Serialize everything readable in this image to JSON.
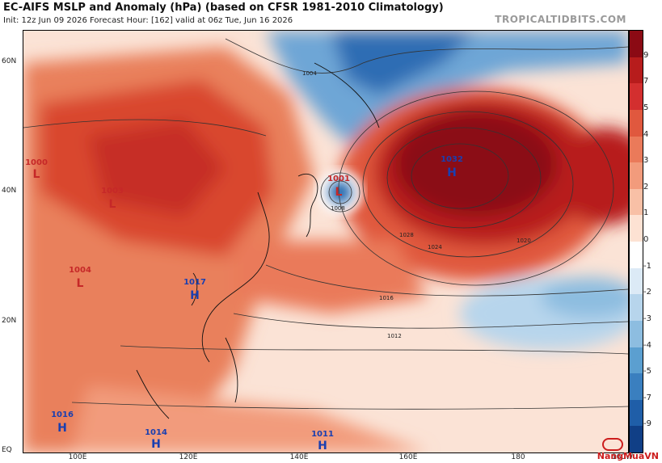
{
  "header": {
    "title": "EC-AIFS MSLP and Anomaly (hPa) (based on CFSR 1981-2010 Climatology)",
    "subtitle": "Init: 12z Jun 09 2026   Forecast Hour: [162]   valid at 06z Tue, Jun 16 2026",
    "brand": "TROPICALTIDBITS.COM"
  },
  "axes": {
    "lat_labels": [
      "60N",
      "40N",
      "20N",
      "EQ"
    ],
    "lon_labels": [
      "100E",
      "120E",
      "140E",
      "160E",
      "180",
      "160W"
    ]
  },
  "colorbar": {
    "ticks": [
      "9",
      "7",
      "5",
      "4",
      "3",
      "2",
      "1",
      "0",
      "-1",
      "-2",
      "-3",
      "-4",
      "-5",
      "-7",
      "-9"
    ],
    "colors": [
      "#8b0a14",
      "#b71c1c",
      "#d32f2f",
      "#e0583e",
      "#ea7a5a",
      "#f29b7c",
      "#f8c0a6",
      "#fde2d3",
      "#ffffff",
      "#dceaf6",
      "#b7d5ec",
      "#8dbde0",
      "#5b9fd0",
      "#3a7fbf",
      "#1f5ea8",
      "#103f86"
    ]
  },
  "pressure_centers": [
    {
      "type": "H",
      "value": "1032",
      "color": "#1a3fb0"
    },
    {
      "type": "L",
      "value": "1001",
      "color": "#c62828"
    },
    {
      "type": "L",
      "value": "1003",
      "color": "#c62828"
    },
    {
      "type": "L",
      "value": "1000",
      "color": "#c62828"
    },
    {
      "type": "L",
      "value": "1004",
      "color": "#c62828"
    },
    {
      "type": "H",
      "value": "1017",
      "color": "#1a3fb0"
    },
    {
      "type": "H",
      "value": "1016",
      "color": "#1a3fb0"
    },
    {
      "type": "H",
      "value": "1014",
      "color": "#1a3fb0"
    },
    {
      "type": "H",
      "value": "1011",
      "color": "#1a3fb0"
    }
  ],
  "isobar_labels": [
    "1004",
    "1008",
    "1012",
    "1016",
    "1020",
    "1024",
    "1028"
  ],
  "watermark": "NangMuaVN"
}
